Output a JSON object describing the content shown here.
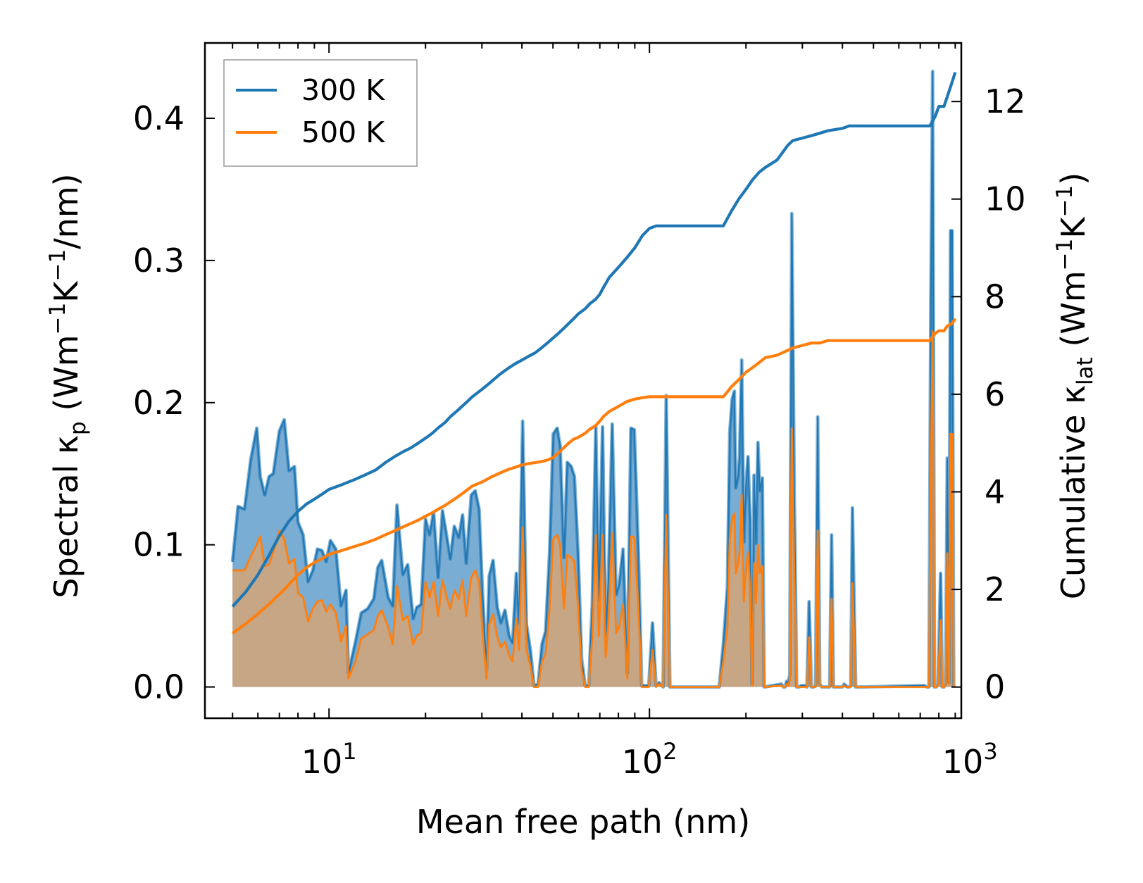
{
  "chart_data": {
    "type": "line",
    "xscale": "log",
    "xlim": [
      4.1,
      940
    ],
    "ylim_left": [
      -0.022,
      0.453
    ],
    "ylim_right": [
      -0.64,
      13.2
    ],
    "xlabel": "Mean free path (nm)",
    "ylabel_left": {
      "main": "Spectral κ",
      "sub": "p",
      "a": " (Wm",
      "s1": "−1",
      "b": "K",
      "s2": "−1",
      "c": "/nm)"
    },
    "ylabel_right": {
      "main": "Cumulative κ",
      "sub": "lat",
      "a": " (Wm",
      "s1": "−1",
      "b": "K",
      "s2": "−1",
      "c": ")"
    },
    "x_ticks": [
      {
        "value": 10,
        "base": "10",
        "exp": "1"
      },
      {
        "value": 100,
        "base": "10",
        "exp": "2"
      },
      {
        "value": 1000,
        "base": "10",
        "exp": "3"
      }
    ],
    "y_ticks_left": [
      {
        "value": 0.0,
        "label": "0.0"
      },
      {
        "value": 0.1,
        "label": "0.1"
      },
      {
        "value": 0.2,
        "label": "0.2"
      },
      {
        "value": 0.3,
        "label": "0.3"
      },
      {
        "value": 0.4,
        "label": "0.4"
      }
    ],
    "y_ticks_right": [
      {
        "value": 0,
        "label": "0"
      },
      {
        "value": 2,
        "label": "2"
      },
      {
        "value": 4,
        "label": "4"
      },
      {
        "value": 6,
        "label": "6"
      },
      {
        "value": 8,
        "label": "8"
      },
      {
        "value": 10,
        "label": "10"
      },
      {
        "value": 12,
        "label": "12"
      }
    ],
    "legend": {
      "position": "upper-left",
      "entries": [
        {
          "label": "300 K",
          "color": "#1f77b4"
        },
        {
          "label": "500 K",
          "color": "#ff7f0e"
        }
      ]
    },
    "spectral": [
      {
        "name": "300 K",
        "color": "#1f77b4",
        "x": [
          5,
          5.2,
          5.45,
          5.7,
          5.95,
          6.1,
          6.3,
          6.5,
          6.7,
          7.0,
          7.25,
          7.5,
          7.8,
          8.0,
          8.3,
          8.6,
          8.9,
          9.2,
          9.5,
          9.8,
          10.1,
          10.5,
          10.9,
          11.3,
          11.5,
          12.1,
          12.6,
          13.2,
          13.8,
          14.2,
          14.6,
          15.3,
          15.8,
          16.3,
          17.0,
          17.6,
          18.3,
          18.8,
          19.4,
          20.0,
          20.6,
          21.2,
          21.9,
          22.6,
          23.3,
          23.9,
          24.6,
          25.4,
          26.1,
          26.8,
          27.8,
          28.6,
          29.4,
          30.1,
          31.0,
          31.6,
          32.5,
          33.5,
          34.4,
          35.4,
          36.5,
          37.4,
          38.4,
          39.2,
          40.2,
          41.3,
          42.5,
          43.6,
          44.9,
          46.2,
          47.4,
          48.8,
          50.1,
          51.5,
          52.6,
          54.1,
          55.4,
          57.0,
          58.3,
          59.9,
          61.4,
          63.0,
          64.6,
          66.3,
          68.0,
          69.5,
          71.4,
          73.0,
          74.4,
          76.5,
          78.7,
          80.4,
          82.7,
          85.3,
          87.5,
          89.7,
          92.3,
          94.6,
          97.2,
          99.5,
          102.2,
          104.8,
          107.2,
          110.3,
          112.8,
          115.8,
          165,
          170,
          175,
          178,
          181,
          184,
          186,
          189,
          191,
          194,
          197,
          200,
          203,
          206,
          209,
          212,
          215,
          218,
          221,
          225,
          228,
          258,
          262,
          265,
          268,
          271,
          274,
          278,
          283,
          288,
          293,
          297,
          301,
          306,
          310,
          315,
          320,
          325,
          330,
          335,
          340,
          345,
          350,
          360,
          365,
          370,
          375,
          380,
          388,
          393,
          400,
          405,
          410,
          415,
          420,
          425,
          430,
          440,
          450,
          458,
          720,
          735,
          745,
          755,
          765,
          775,
          785,
          795,
          810,
          820,
          830,
          840,
          850,
          860,
          870,
          880,
          890
        ],
        "y": [
          0.088,
          0.127,
          0.125,
          0.16,
          0.182,
          0.148,
          0.135,
          0.148,
          0.15,
          0.18,
          0.188,
          0.152,
          0.155,
          0.116,
          0.107,
          0.074,
          0.082,
          0.097,
          0.096,
          0.088,
          0.103,
          0.097,
          0.057,
          0.068,
          0.01,
          0.032,
          0.052,
          0.055,
          0.062,
          0.084,
          0.089,
          0.063,
          0.057,
          0.128,
          0.079,
          0.086,
          0.048,
          0.056,
          0.058,
          0.118,
          0.107,
          0.123,
          0.077,
          0.124,
          0.106,
          0.09,
          0.113,
          0.105,
          0.121,
          0.087,
          0.135,
          0.138,
          0.125,
          0.069,
          0.012,
          0.078,
          0.089,
          0.056,
          0.045,
          0.054,
          0.036,
          0.031,
          0.08,
          0.045,
          0.187,
          0.044,
          0.026,
          0.001,
          0.002,
          0.03,
          0.039,
          0.095,
          0.178,
          0.182,
          0.17,
          0.091,
          0.158,
          0.155,
          0.148,
          0.094,
          0.02,
          0.001,
          0.001,
          0.058,
          0.183,
          0.061,
          0.183,
          0.035,
          0.074,
          0.185,
          0.065,
          0.072,
          0.097,
          0.01,
          0.182,
          0.181,
          0.095,
          0.001,
          0.001,
          0.001,
          0.045,
          0.001,
          0.003,
          0.0,
          0.205,
          0.0,
          0.0,
          0.03,
          0.07,
          0.179,
          0.202,
          0.208,
          0.14,
          0.148,
          0.162,
          0.23,
          0.102,
          0.141,
          0.162,
          0.119,
          0.002,
          0.149,
          0.101,
          0.172,
          0.138,
          0.147,
          0.0,
          0.002,
          0.0,
          0.0,
          0.004,
          0.002,
          0.009,
          0.333,
          0.137,
          0.0,
          0.0,
          0.001,
          0.001,
          0.001,
          0.0,
          0.06,
          0.0,
          0.0,
          0.001,
          0.19,
          0.002,
          0.0,
          0.0,
          0.0,
          0.0,
          0.107,
          0.0,
          0.0,
          0.0,
          0.0,
          0.0,
          0.002,
          0.001,
          0.0,
          0.0,
          0.001,
          0.126,
          0.0,
          0.0,
          0.0,
          0.001,
          0.0,
          0.0,
          0.27,
          0.433,
          0.0,
          0.0,
          0.002,
          0.08,
          0.0,
          0.0,
          0.003,
          0.161,
          0.003,
          0.321,
          0.321,
          0.0
        ]
      },
      {
        "name": "500 K",
        "color": "#ff7f0e",
        "x": [
          5,
          5.2,
          5.45,
          5.7,
          5.95,
          6.1,
          6.3,
          6.5,
          6.7,
          7.0,
          7.25,
          7.5,
          7.8,
          8.0,
          8.3,
          8.6,
          8.9,
          9.2,
          9.5,
          9.8,
          10.1,
          10.5,
          10.9,
          11.3,
          11.5,
          12.1,
          12.6,
          13.2,
          13.8,
          14.2,
          14.6,
          15.3,
          15.8,
          16.3,
          17.0,
          17.6,
          18.3,
          18.8,
          19.4,
          20.0,
          20.6,
          21.2,
          21.9,
          22.6,
          23.3,
          23.9,
          24.6,
          25.4,
          26.1,
          26.8,
          27.8,
          28.6,
          29.4,
          30.1,
          31.0,
          31.6,
          32.5,
          33.5,
          34.4,
          35.4,
          36.5,
          37.4,
          38.4,
          39.2,
          40.2,
          41.3,
          42.5,
          43.6,
          44.9,
          46.2,
          47.4,
          48.8,
          50.1,
          51.5,
          52.6,
          54.1,
          55.4,
          57.0,
          58.3,
          59.9,
          61.4,
          63.0,
          64.6,
          66.3,
          68.0,
          69.5,
          71.4,
          73.0,
          74.4,
          76.5,
          78.7,
          80.4,
          82.7,
          85.3,
          87.5,
          89.7,
          92.3,
          94.6,
          97.2,
          99.5,
          102.2,
          104.8,
          107.2,
          110.3,
          112.8,
          115.8,
          165,
          170,
          175,
          178,
          181,
          184,
          186,
          189,
          191,
          194,
          197,
          200,
          203,
          206,
          209,
          212,
          215,
          218,
          221,
          225,
          228,
          258,
          262,
          265,
          268,
          271,
          274,
          278,
          283,
          288,
          293,
          297,
          301,
          306,
          310,
          315,
          320,
          325,
          330,
          335,
          340,
          345,
          350,
          360,
          365,
          370,
          375,
          380,
          388,
          393,
          400,
          405,
          410,
          415,
          420,
          425,
          430,
          440,
          450,
          458,
          720,
          735,
          745,
          755,
          765,
          775,
          785,
          795,
          810,
          820,
          830,
          840,
          850,
          860,
          870,
          880,
          890
        ],
        "y": [
          0.082,
          0.082,
          0.082,
          0.092,
          0.1,
          0.106,
          0.085,
          0.086,
          0.095,
          0.11,
          0.104,
          0.087,
          0.09,
          0.066,
          0.063,
          0.046,
          0.055,
          0.06,
          0.061,
          0.053,
          0.058,
          0.052,
          0.032,
          0.043,
          0.006,
          0.018,
          0.034,
          0.037,
          0.04,
          0.05,
          0.054,
          0.042,
          0.03,
          0.071,
          0.047,
          0.05,
          0.03,
          0.036,
          0.038,
          0.074,
          0.063,
          0.074,
          0.05,
          0.075,
          0.063,
          0.055,
          0.068,
          0.062,
          0.075,
          0.05,
          0.077,
          0.082,
          0.074,
          0.04,
          0.006,
          0.044,
          0.051,
          0.035,
          0.028,
          0.032,
          0.022,
          0.018,
          0.048,
          0.026,
          0.112,
          0.026,
          0.015,
          0.0,
          0.0,
          0.018,
          0.023,
          0.055,
          0.104,
          0.107,
          0.1,
          0.055,
          0.093,
          0.091,
          0.088,
          0.056,
          0.012,
          0.0,
          0.0,
          0.034,
          0.107,
          0.036,
          0.107,
          0.021,
          0.044,
          0.108,
          0.038,
          0.042,
          0.058,
          0.006,
          0.106,
          0.105,
          0.056,
          0.0,
          0.0,
          0.0,
          0.026,
          0.0,
          0.002,
          0.0,
          0.121,
          0.0,
          0.0,
          0.018,
          0.041,
          0.104,
          0.118,
          0.122,
          0.08,
          0.086,
          0.095,
          0.135,
          0.06,
          0.082,
          0.095,
          0.07,
          0.001,
          0.087,
          0.059,
          0.1,
          0.08,
          0.085,
          0.0,
          0.001,
          0.0,
          0.0,
          0.002,
          0.001,
          0.005,
          0.182,
          0.08,
          0.0,
          0.0,
          0.0,
          0.0,
          0.0,
          0.0,
          0.035,
          0.0,
          0.0,
          0.0,
          0.11,
          0.001,
          0.0,
          0.0,
          0.0,
          0.0,
          0.062,
          0.0,
          0.0,
          0.0,
          0.0,
          0.0,
          0.001,
          0.0,
          0.0,
          0.0,
          0.0,
          0.073,
          0.0,
          0.0,
          0.0,
          0.0,
          0.0,
          0.0,
          0.155,
          0.25,
          0.0,
          0.0,
          0.001,
          0.047,
          0.0,
          0.0,
          0.002,
          0.094,
          0.002,
          0.178,
          0.178,
          0.0
        ]
      }
    ],
    "cumulative": [
      {
        "name": "300 K",
        "color": "#1f77b4",
        "x": [
          5,
          5.5,
          6,
          6.5,
          7,
          7.5,
          8,
          8.5,
          9,
          9.5,
          10,
          11,
          12,
          13,
          14,
          15,
          16,
          17,
          18,
          19,
          20,
          21,
          22,
          23,
          24,
          25,
          26,
          27,
          28,
          30,
          32,
          34,
          36,
          38,
          40,
          42,
          44,
          46,
          48,
          50,
          52,
          54,
          56,
          58,
          60,
          63,
          65,
          68,
          70,
          72,
          75,
          80,
          85,
          90,
          95,
          100,
          105,
          110,
          170,
          180,
          190,
          200,
          210,
          220,
          230,
          250,
          260,
          270,
          280,
          300,
          320,
          340,
          360,
          400,
          420,
          440,
          700,
          750,
          780,
          800,
          810,
          830,
          850,
          880,
          900
        ],
        "y": [
          1.65,
          1.95,
          2.3,
          2.7,
          3.1,
          3.4,
          3.6,
          3.75,
          3.85,
          3.95,
          4.05,
          4.15,
          4.25,
          4.35,
          4.45,
          4.6,
          4.72,
          4.82,
          4.9,
          5.0,
          5.1,
          5.2,
          5.32,
          5.42,
          5.55,
          5.65,
          5.75,
          5.85,
          5.95,
          6.1,
          6.25,
          6.4,
          6.52,
          6.62,
          6.7,
          6.78,
          6.85,
          6.95,
          7.05,
          7.15,
          7.25,
          7.35,
          7.45,
          7.55,
          7.65,
          7.75,
          7.85,
          7.95,
          8.05,
          8.2,
          8.4,
          8.6,
          8.8,
          9.0,
          9.25,
          9.4,
          9.45,
          9.45,
          9.45,
          9.75,
          10.0,
          10.2,
          10.4,
          10.55,
          10.65,
          10.8,
          10.95,
          11.1,
          11.2,
          11.25,
          11.3,
          11.35,
          11.4,
          11.45,
          11.5,
          11.5,
          11.5,
          11.5,
          11.7,
          11.9,
          11.9,
          11.9,
          12.1,
          12.4,
          12.6
        ]
      },
      {
        "name": "500 K",
        "color": "#ff7f0e",
        "x": [
          5,
          5.5,
          6,
          6.5,
          7,
          7.5,
          8,
          8.5,
          9,
          9.5,
          10,
          11,
          12,
          13,
          14,
          15,
          16,
          17,
          18,
          19,
          20,
          21,
          22,
          23,
          24,
          25,
          26,
          27,
          28,
          30,
          32,
          34,
          36,
          38,
          40,
          42,
          44,
          46,
          48,
          50,
          52,
          54,
          56,
          58,
          60,
          63,
          65,
          68,
          70,
          72,
          75,
          80,
          85,
          90,
          95,
          100,
          105,
          110,
          170,
          180,
          190,
          200,
          210,
          220,
          230,
          250,
          260,
          270,
          280,
          300,
          320,
          340,
          360,
          400,
          420,
          440,
          700,
          750,
          780,
          800,
          810,
          830,
          850,
          880,
          900
        ],
        "y": [
          1.1,
          1.3,
          1.5,
          1.7,
          1.9,
          2.1,
          2.3,
          2.45,
          2.55,
          2.63,
          2.72,
          2.8,
          2.88,
          2.95,
          3.03,
          3.12,
          3.2,
          3.28,
          3.35,
          3.42,
          3.5,
          3.57,
          3.65,
          3.72,
          3.8,
          3.88,
          3.96,
          4.04,
          4.12,
          4.2,
          4.3,
          4.38,
          4.45,
          4.5,
          4.55,
          4.58,
          4.6,
          4.62,
          4.65,
          4.7,
          4.8,
          4.9,
          5.0,
          5.08,
          5.12,
          5.2,
          5.28,
          5.36,
          5.45,
          5.55,
          5.65,
          5.75,
          5.85,
          5.9,
          5.93,
          5.95,
          5.95,
          5.95,
          5.95,
          6.15,
          6.3,
          6.45,
          6.55,
          6.65,
          6.75,
          6.8,
          6.85,
          6.9,
          6.95,
          7.0,
          7.05,
          7.05,
          7.1,
          7.1,
          7.1,
          7.1,
          7.1,
          7.1,
          7.25,
          7.3,
          7.3,
          7.3,
          7.4,
          7.45,
          7.55
        ]
      }
    ]
  }
}
